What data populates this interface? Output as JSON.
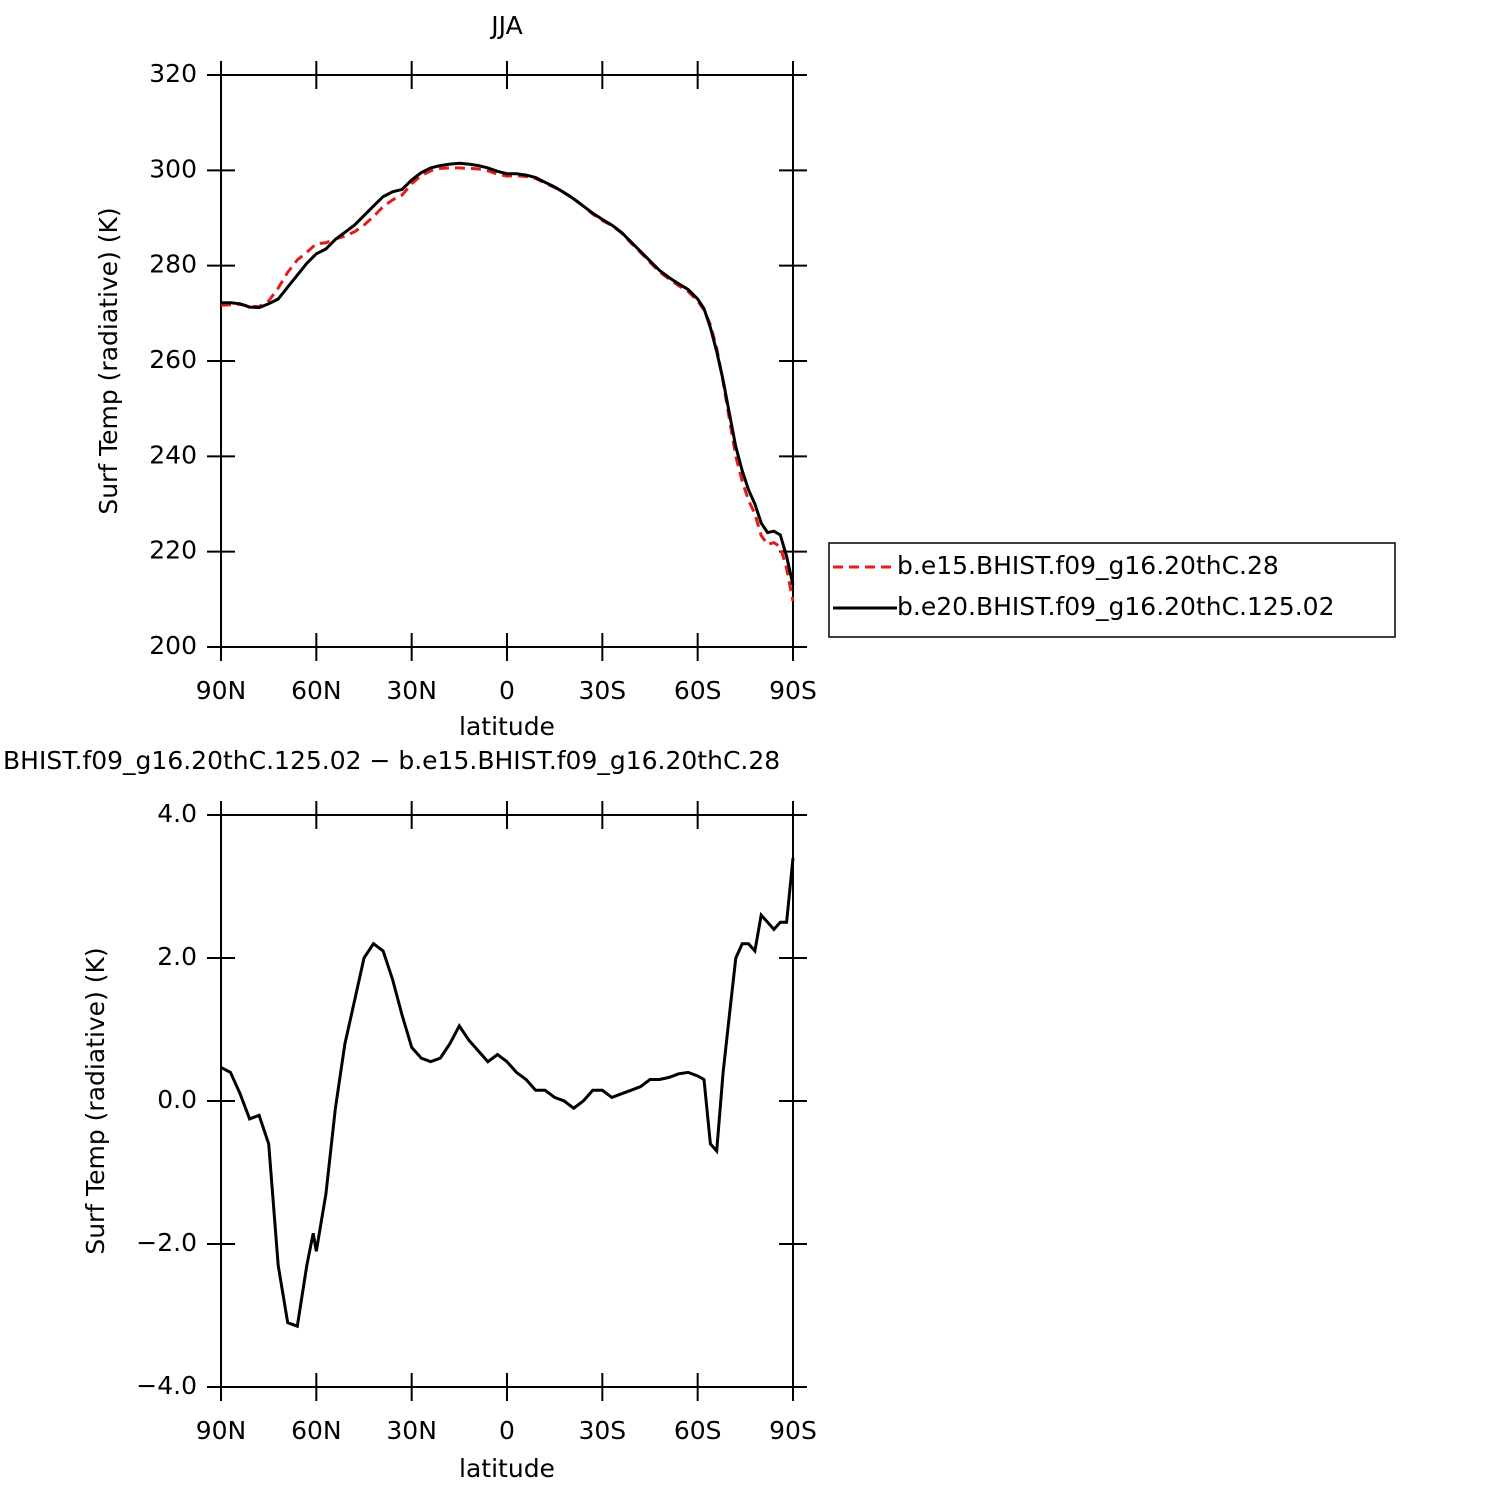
{
  "chart_data": [
    {
      "type": "line",
      "title": "JJA",
      "xlabel": "latitude",
      "ylabel": "Surf Temp (radiative) (K)",
      "x": [
        90,
        87,
        84,
        81,
        78,
        75,
        72,
        69,
        66,
        63,
        60,
        57,
        54,
        51,
        48,
        45,
        42,
        39,
        36,
        33,
        30,
        27,
        24,
        21,
        18,
        15,
        12,
        9,
        6,
        3,
        0,
        -3,
        -6,
        -9,
        -12,
        -15,
        -18,
        -21,
        -24,
        -27,
        -30,
        -33,
        -36,
        -39,
        -42,
        -45,
        -48,
        -51,
        -54,
        -57,
        -60,
        -62,
        -64,
        -66,
        -68,
        -70,
        -72,
        -74,
        -76,
        -78,
        -80,
        -82,
        -84,
        -86,
        -88,
        -90
      ],
      "series": [
        {
          "name": "b.e15.BHIST.f09_g16.20thC.28",
          "color": "#e41a1c",
          "linestyle": "dashed",
          "values": [
            271.7,
            271.8,
            271.9,
            271.5,
            271.4,
            272.6,
            275.3,
            278.6,
            281.2,
            282.8,
            284.6,
            284.8,
            285.6,
            286.2,
            287.1,
            288.5,
            290.3,
            292.4,
            293.8,
            294.8,
            297.2,
            298.9,
            299.9,
            300.4,
            300.5,
            300.5,
            300.4,
            300.3,
            299.9,
            299.2,
            298.8,
            298.9,
            298.7,
            298.3,
            297.3,
            296.4,
            295.3,
            294.1,
            292.5,
            290.8,
            289.5,
            288.4,
            286.9,
            284.8,
            282.8,
            280.7,
            278.7,
            277.2,
            275.8,
            274.6,
            272.6,
            270.7,
            267.6,
            262.7,
            255.6,
            247.8,
            240,
            234.8,
            230.8,
            227.9,
            223.4,
            221.5,
            221.9,
            221,
            216.5,
            209.6
          ]
        },
        {
          "name": "b.e20.BHIST.f09_g16.20thC.125.02",
          "color": "#000000",
          "linestyle": "solid",
          "values": [
            272.2,
            272.2,
            272,
            271.3,
            271.2,
            272,
            273,
            275.5,
            278,
            280.5,
            282.5,
            283.5,
            285.5,
            287,
            288.5,
            290.5,
            292.5,
            294.5,
            295.5,
            296,
            298,
            299.5,
            300.5,
            301,
            301.3,
            301.5,
            301.3,
            301,
            300.5,
            299.8,
            299.3,
            299.3,
            299,
            298.5,
            297.5,
            296.5,
            295.3,
            294,
            292.5,
            291,
            289.7,
            288.5,
            287,
            285,
            283,
            281,
            279,
            277.5,
            276.2,
            275,
            273,
            271,
            267,
            262,
            256,
            249,
            242,
            237,
            233,
            230,
            226,
            224,
            224.3,
            223.5,
            219,
            213
          ]
        }
      ],
      "xlim": [
        90,
        -90
      ],
      "xticks": [
        {
          "value": 90,
          "label": "90N"
        },
        {
          "value": 60,
          "label": "60N"
        },
        {
          "value": 30,
          "label": "30N"
        },
        0,
        {
          "value": -30,
          "label": "30S"
        },
        {
          "value": -60,
          "label": "60S"
        },
        {
          "value": -90,
          "label": "90S"
        }
      ],
      "ylim": [
        200,
        320
      ],
      "yticks": [
        200,
        220,
        240,
        260,
        280,
        300,
        320
      ],
      "legend": "right"
    },
    {
      "type": "line",
      "title": "BHIST.f09_g16.20thC.125.02 − b.e15.BHIST.f09_g16.20thC.28",
      "xlabel": "latitude",
      "ylabel": "Surf Temp (radiative) (K)",
      "x": [
        90,
        87,
        84,
        81,
        78,
        75,
        72,
        69,
        66,
        63,
        61,
        60,
        57,
        54,
        51,
        48,
        45,
        42,
        39,
        36,
        33,
        30,
        27,
        24,
        21,
        18,
        15,
        12,
        9,
        6,
        3,
        0,
        -3,
        -6,
        -9,
        -12,
        -15,
        -18,
        -21,
        -24,
        -27,
        -30,
        -33,
        -36,
        -39,
        -42,
        -45,
        -48,
        -51,
        -54,
        -57,
        -60,
        -62,
        -64,
        -66,
        -68,
        -70,
        -72,
        -74,
        -76,
        -78,
        -80,
        -82,
        -84,
        -86,
        -88,
        -90
      ],
      "series": [
        {
          "color": "#000000",
          "linestyle": "solid",
          "values": [
            0.47,
            0.4,
            0.1,
            -0.25,
            -0.2,
            -0.6,
            -2.3,
            -3.1,
            -3.15,
            -2.3,
            -1.85,
            -2.1,
            -1.3,
            -0.1,
            0.8,
            1.4,
            2.0,
            2.2,
            2.1,
            1.7,
            1.2,
            0.75,
            0.6,
            0.55,
            0.6,
            0.8,
            1.05,
            0.85,
            0.7,
            0.55,
            0.65,
            0.55,
            0.4,
            0.3,
            0.15,
            0.15,
            0.05,
            0.0,
            -0.1,
            0.0,
            0.15,
            0.15,
            0.05,
            0.1,
            0.15,
            0.2,
            0.3,
            0.3,
            0.33,
            0.38,
            0.4,
            0.35,
            0.3,
            -0.6,
            -0.7,
            0.4,
            1.2,
            2.0,
            2.2,
            2.2,
            2.1,
            2.6,
            2.5,
            2.4,
            2.5,
            2.5,
            3.4
          ]
        }
      ],
      "xlim": [
        90,
        -90
      ],
      "xticks": [
        {
          "value": 90,
          "label": "90N"
        },
        {
          "value": 60,
          "label": "60N"
        },
        {
          "value": 30,
          "label": "30N"
        },
        0,
        {
          "value": -30,
          "label": "30S"
        },
        {
          "value": -60,
          "label": "60S"
        },
        {
          "value": -90,
          "label": "90S"
        }
      ],
      "ylim": [
        -4,
        4
      ],
      "yticks": [
        {
          "value": -4,
          "label": "−4.0"
        },
        {
          "value": -2,
          "label": "−2.0"
        },
        {
          "value": 0,
          "label": "0.0"
        },
        {
          "value": 2,
          "label": "2.0"
        },
        {
          "value": 4,
          "label": "4.0"
        }
      ]
    }
  ]
}
